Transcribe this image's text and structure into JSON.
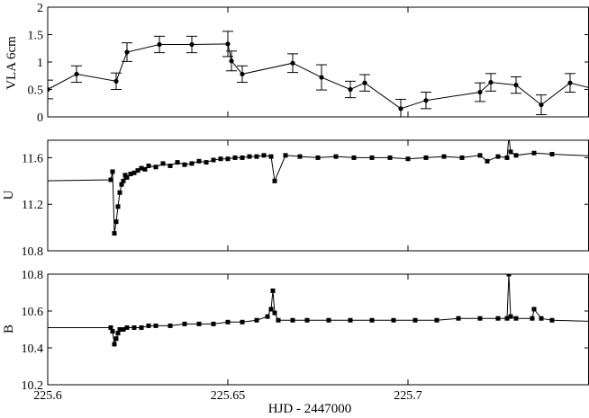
{
  "chart_data": {
    "shared_x": {
      "label": "HJD - 2447000",
      "range": [
        225.6,
        225.75
      ],
      "ticks": [
        225.6,
        225.65,
        225.7
      ],
      "tick_labels": [
        "225.6",
        "225.65",
        "225.7"
      ]
    },
    "panels": [
      {
        "type": "line",
        "ylabel": "VLA 6cm",
        "ylim": [
          0,
          2
        ],
        "y_ticks": [
          0,
          0.5,
          1,
          1.5,
          2
        ],
        "y_tick_labels": [
          "0",
          "0.5",
          "1",
          "1.5",
          "2"
        ],
        "inverted": false,
        "series": [
          {
            "markers": "filled-circle",
            "error_bars": true,
            "x": [
              225.6,
              225.608,
              225.619,
              225.622,
              225.631,
              225.64,
              225.65,
              225.651,
              225.654,
              225.668,
              225.676,
              225.684,
              225.688,
              225.698,
              225.705,
              225.72,
              225.723,
              225.73,
              225.737,
              225.745,
              225.757,
              225.76,
              225.764
            ],
            "y": [
              0.5,
              0.78,
              0.65,
              1.18,
              1.32,
              1.32,
              1.33,
              1.02,
              0.78,
              0.98,
              0.72,
              0.5,
              0.62,
              0.15,
              0.3,
              0.45,
              0.63,
              0.58,
              0.22,
              0.62,
              0.42,
              0.63,
              0.52
            ],
            "err": [
              0.17,
              0.15,
              0.15,
              0.17,
              0.15,
              0.15,
              0.23,
              0.18,
              0.15,
              0.17,
              0.23,
              0.15,
              0.15,
              0.17,
              0.15,
              0.17,
              0.16,
              0.15,
              0.18,
              0.17,
              0.19,
              0.18,
              0.15
            ]
          }
        ]
      },
      {
        "type": "line",
        "ylabel": "U",
        "ylim": [
          10.8,
          11.75
        ],
        "y_ticks": [
          10.8,
          11.2,
          11.6
        ],
        "y_tick_labels": [
          "10.8",
          "11.2",
          "11.6"
        ],
        "inverted": true,
        "series": [
          {
            "markers": "filled-square",
            "x": [
              225.598,
              225.6175,
              225.618,
              225.6185,
              225.619,
              225.6195,
              225.62,
              225.6205,
              225.621,
              225.6215,
              225.622,
              225.623,
              225.624,
              225.625,
              225.626,
              225.627,
              225.628,
              225.63,
              225.632,
              225.634,
              225.636,
              225.638,
              225.64,
              225.642,
              225.644,
              225.646,
              225.648,
              225.65,
              225.652,
              225.654,
              225.656,
              225.658,
              225.66,
              225.662,
              225.663,
              225.666,
              225.67,
              225.675,
              225.68,
              225.685,
              225.69,
              225.695,
              225.7,
              225.705,
              225.71,
              225.715,
              225.72,
              225.722,
              225.725,
              225.7275,
              225.728,
              225.7285,
              225.73,
              225.735,
              225.74,
              225.775
            ],
            "y": [
              11.4,
              11.41,
              11.48,
              10.95,
              11.05,
              11.18,
              11.3,
              11.37,
              11.4,
              11.45,
              11.43,
              11.46,
              11.47,
              11.49,
              11.51,
              11.5,
              11.53,
              11.52,
              11.55,
              11.53,
              11.56,
              11.54,
              11.55,
              11.57,
              11.56,
              11.58,
              11.59,
              11.59,
              11.6,
              11.6,
              11.61,
              11.61,
              11.62,
              11.61,
              11.4,
              11.62,
              11.61,
              11.6,
              11.61,
              11.6,
              11.6,
              11.6,
              11.59,
              11.6,
              11.61,
              11.6,
              11.62,
              11.57,
              11.61,
              11.6,
              11.78,
              11.65,
              11.62,
              11.64,
              11.63,
              11.58
            ]
          }
        ]
      },
      {
        "type": "line",
        "ylabel": "B",
        "ylim": [
          10.2,
          10.8
        ],
        "y_ticks": [
          10.2,
          10.4,
          10.6,
          10.8
        ],
        "y_tick_labels": [
          "10.2",
          "10.4",
          "10.6",
          "10.8"
        ],
        "inverted": true,
        "series": [
          {
            "markers": "filled-square",
            "x": [
              225.598,
              225.6175,
              225.618,
              225.6185,
              225.619,
              225.6195,
              225.62,
              225.621,
              225.622,
              225.624,
              225.626,
              225.628,
              225.63,
              225.634,
              225.638,
              225.642,
              225.646,
              225.65,
              225.654,
              225.658,
              225.661,
              225.662,
              225.6625,
              225.663,
              225.664,
              225.668,
              225.672,
              225.678,
              225.684,
              225.69,
              225.696,
              225.702,
              225.708,
              225.714,
              225.72,
              225.725,
              225.7275,
              225.728,
              225.7285,
              225.73,
              225.7345,
              225.735,
              225.737,
              225.74,
              225.775
            ],
            "y": [
              10.51,
              10.51,
              10.49,
              10.42,
              10.45,
              10.48,
              10.5,
              10.5,
              10.51,
              10.51,
              10.51,
              10.52,
              10.52,
              10.52,
              10.53,
              10.53,
              10.53,
              10.54,
              10.54,
              10.55,
              10.57,
              10.61,
              10.71,
              10.59,
              10.55,
              10.55,
              10.55,
              10.55,
              10.55,
              10.55,
              10.55,
              10.55,
              10.55,
              10.56,
              10.56,
              10.56,
              10.56,
              10.8,
              10.57,
              10.56,
              10.56,
              10.61,
              10.56,
              10.55,
              10.53
            ]
          }
        ]
      }
    ]
  }
}
